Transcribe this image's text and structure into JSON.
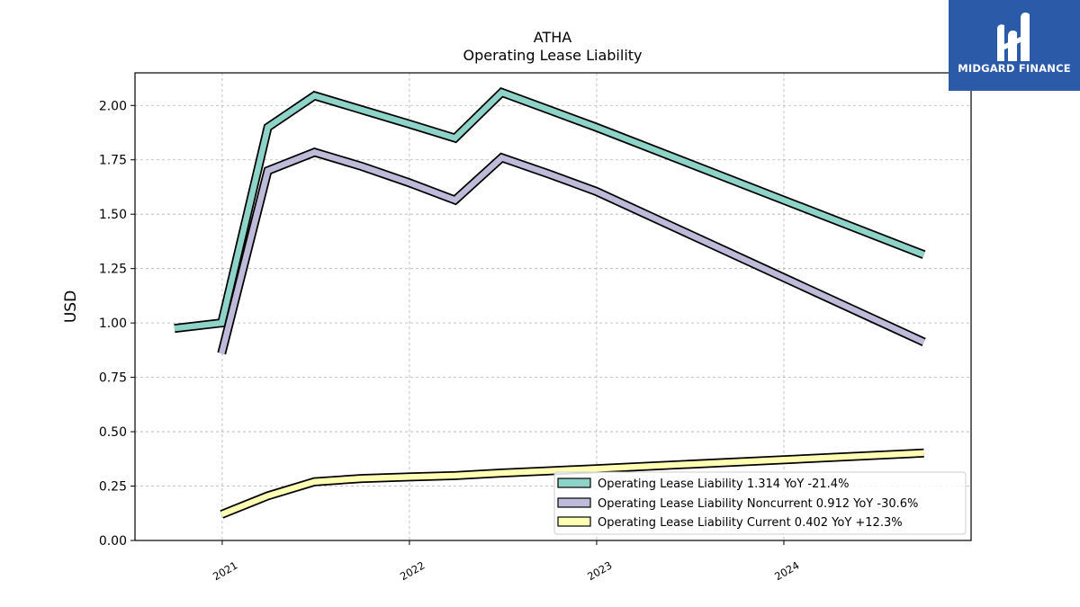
{
  "brand": {
    "name": "MIDGARD FINANCE",
    "background": "#2b5aa9"
  },
  "chart_data": {
    "type": "line",
    "title": "ATHA",
    "subtitle": "Operating Lease Liability",
    "ylabel": "USD",
    "xlabel": "",
    "x_ticks": [
      "2021",
      "2022",
      "2023",
      "2024"
    ],
    "y_ticks": [
      "0.00",
      "0.25",
      "0.50",
      "0.75",
      "1.00",
      "1.25",
      "1.50",
      "1.75",
      "2.00"
    ],
    "ylim": [
      0,
      2.15
    ],
    "xlim": [
      "2020-07-15",
      "2024-12-31"
    ],
    "grid": true,
    "legend_position": "lower-right",
    "series": [
      {
        "name": "Operating Lease Liability",
        "legend_label": "Operating Lease Liability  1.314 YoY -21.4%",
        "color": "#8dd3c7",
        "points": [
          [
            "2020-09-30",
            0.975
          ],
          [
            "2020-12-31",
            1.0
          ],
          [
            "2021-03-31",
            1.9
          ],
          [
            "2021-06-30",
            2.045
          ],
          [
            "2021-09-30",
            1.98
          ],
          [
            "2021-12-31",
            1.915
          ],
          [
            "2022-03-31",
            1.85
          ],
          [
            "2022-06-30",
            2.06
          ],
          [
            "2022-09-30",
            1.98
          ],
          [
            "2022-12-31",
            1.9
          ],
          [
            "2024-09-30",
            1.314
          ]
        ]
      },
      {
        "name": "Operating Lease Liability Noncurrent",
        "legend_label": "Operating Lease Liability Noncurrent  0.912 YoY -30.6%",
        "color": "#bebada",
        "points": [
          [
            "2020-12-31",
            0.86
          ],
          [
            "2021-03-31",
            1.7
          ],
          [
            "2021-06-30",
            1.785
          ],
          [
            "2021-09-30",
            1.72
          ],
          [
            "2021-12-31",
            1.645
          ],
          [
            "2022-03-31",
            1.565
          ],
          [
            "2022-06-30",
            1.76
          ],
          [
            "2022-09-30",
            1.685
          ],
          [
            "2022-12-31",
            1.605
          ],
          [
            "2024-09-30",
            0.912
          ]
        ]
      },
      {
        "name": "Operating Lease Liability Current",
        "legend_label": "Operating Lease Liability Current  0.402 YoY +12.3%",
        "color": "#ffffb3",
        "points": [
          [
            "2020-12-31",
            0.12
          ],
          [
            "2021-03-31",
            0.205
          ],
          [
            "2021-06-30",
            0.27
          ],
          [
            "2021-09-30",
            0.285
          ],
          [
            "2021-12-31",
            0.292
          ],
          [
            "2022-03-31",
            0.298
          ],
          [
            "2022-06-30",
            0.31
          ],
          [
            "2022-09-30",
            0.32
          ],
          [
            "2022-12-31",
            0.33
          ],
          [
            "2024-09-30",
            0.402
          ]
        ]
      }
    ]
  }
}
